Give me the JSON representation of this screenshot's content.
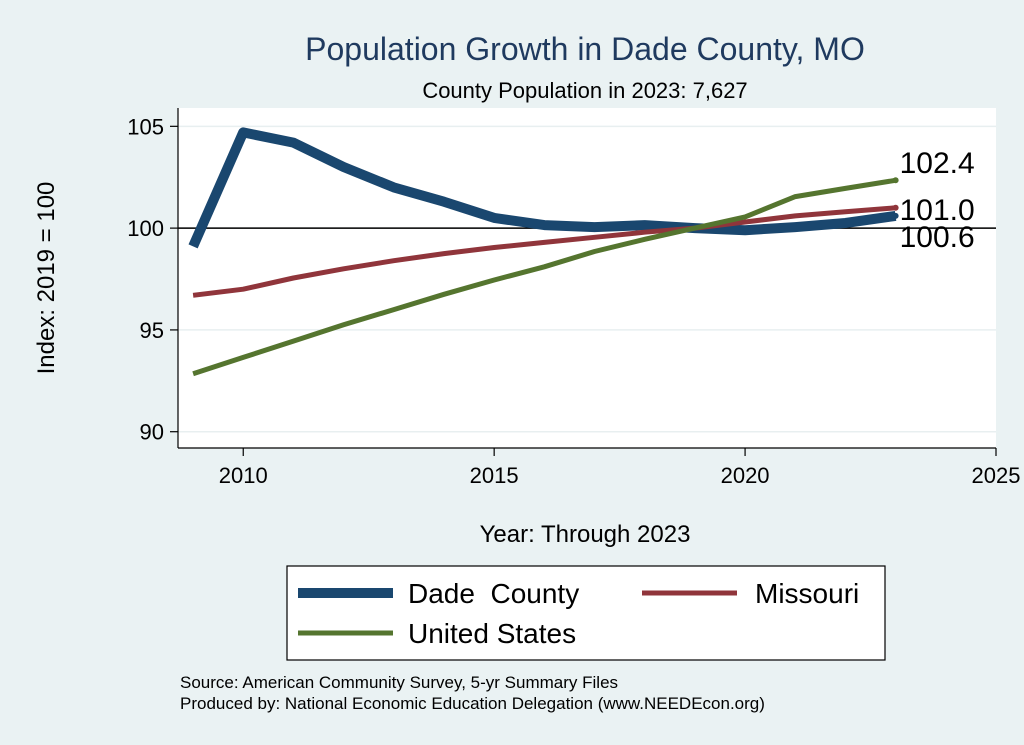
{
  "chart_data": {
    "type": "line",
    "title": "Population Growth in Dade County, MO",
    "subtitle": "County Population in 2023: 7,627",
    "xlabel": "Year: Through 2023",
    "ylabel": "Index: 2019 = 100",
    "xlim": [
      2008.7,
      2025
    ],
    "ylim": [
      89.2,
      105.9
    ],
    "x_ticks": [
      2010,
      2015,
      2020,
      2025
    ],
    "y_ticks": [
      90,
      95,
      100,
      105
    ],
    "reference_line": 100,
    "grid": "horizontal",
    "legend_position": "bottom",
    "x": [
      2009,
      2010,
      2011,
      2012,
      2013,
      2014,
      2015,
      2016,
      2017,
      2018,
      2019,
      2020,
      2021,
      2022,
      2023
    ],
    "series": [
      {
        "name": "Dade  County",
        "color": "#1a476f",
        "values": [
          99.1,
          104.7,
          104.2,
          103.0,
          102.0,
          101.3,
          100.5,
          100.15,
          100.05,
          100.15,
          100.0,
          99.9,
          100.05,
          100.25,
          100.6
        ],
        "end_label": "100.6"
      },
      {
        "name": "Missouri",
        "color": "#90353b",
        "values": [
          96.7,
          97.0,
          97.55,
          98.0,
          98.4,
          98.75,
          99.05,
          99.3,
          99.55,
          99.8,
          100.0,
          100.3,
          100.6,
          100.8,
          101.0
        ],
        "end_label": "101.0"
      },
      {
        "name": "United States",
        "color": "#55752f",
        "values": [
          92.85,
          93.65,
          94.45,
          95.25,
          96.0,
          96.75,
          97.45,
          98.1,
          98.85,
          99.45,
          100.0,
          100.55,
          101.55,
          101.95,
          102.35
        ],
        "end_label": "102.4"
      }
    ]
  },
  "source_lines": [
    "Source: American Community Survey, 5-yr Summary Files",
    "Produced by: National Economic Education Delegation (www.NEEDEcon.org)"
  ]
}
